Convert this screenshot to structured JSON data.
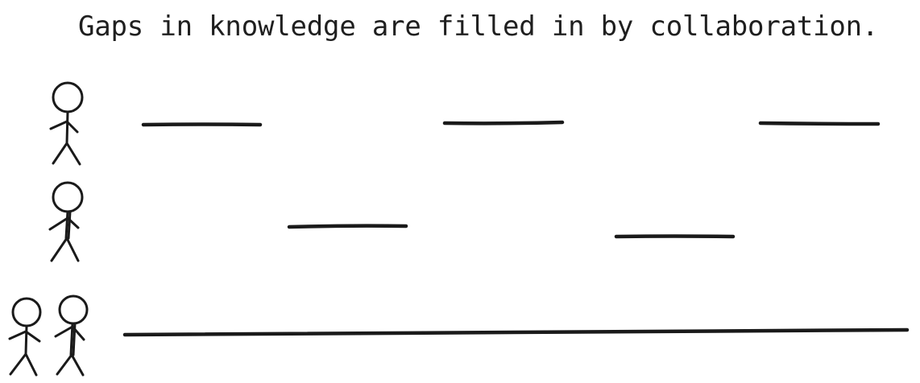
{
  "title": "Gaps in knowledge are filled in by collaboration."
}
